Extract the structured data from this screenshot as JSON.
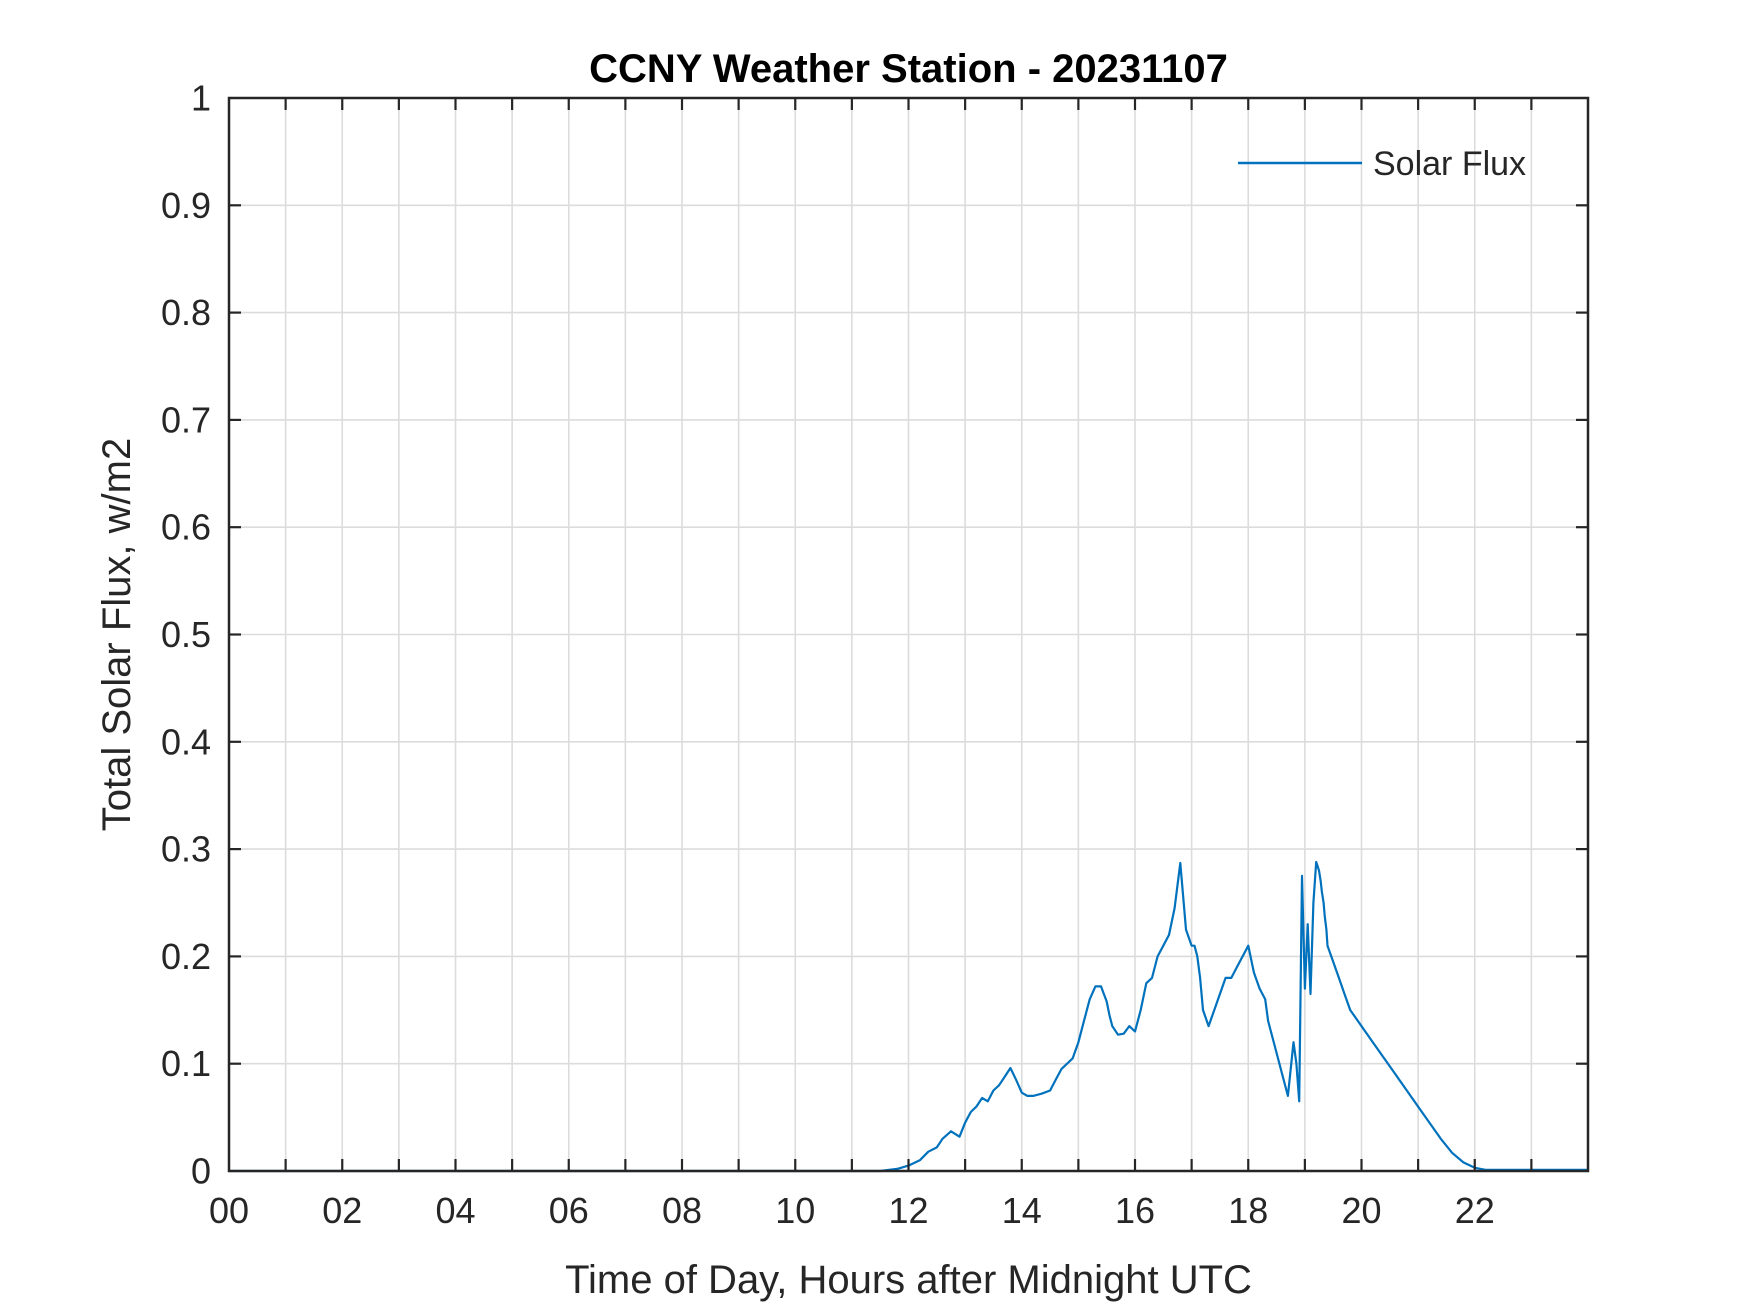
{
  "chart_data": {
    "type": "line",
    "title": "CCNY Weather Station - 20231107",
    "xlabel": "Time of Day, Hours after Midnight UTC",
    "ylabel": "Total Solar Flux, w/m2",
    "xlim": [
      0,
      24
    ],
    "ylim": [
      0,
      1
    ],
    "xticks": [
      0,
      2,
      4,
      6,
      8,
      10,
      12,
      14,
      16,
      18,
      20,
      22
    ],
    "xtick_labels": [
      "00",
      "02",
      "04",
      "06",
      "08",
      "10",
      "12",
      "14",
      "16",
      "18",
      "20",
      "22"
    ],
    "yticks": [
      0,
      0.1,
      0.2,
      0.3,
      0.4,
      0.5,
      0.6,
      0.7,
      0.8,
      0.9,
      1
    ],
    "ytick_labels": [
      "0",
      "0.1",
      "0.2",
      "0.3",
      "0.4",
      "0.5",
      "0.6",
      "0.7",
      "0.8",
      "0.9",
      "1"
    ],
    "grid": true,
    "minor_x_grid_step": 1,
    "legend_position": "top-right",
    "series": [
      {
        "name": "Solar Flux",
        "color": "#0072BD",
        "x": [
          0,
          11.5,
          11.8,
          12.0,
          12.2,
          12.35,
          12.5,
          12.6,
          12.75,
          12.9,
          13.0,
          13.1,
          13.2,
          13.3,
          13.4,
          13.5,
          13.6,
          13.7,
          13.8,
          13.9,
          14.0,
          14.1,
          14.2,
          14.35,
          14.5,
          14.6,
          14.7,
          14.8,
          14.9,
          15.0,
          15.1,
          15.2,
          15.3,
          15.4,
          15.5,
          15.55,
          15.6,
          15.7,
          15.8,
          15.9,
          16.0,
          16.1,
          16.2,
          16.3,
          16.4,
          16.5,
          16.6,
          16.7,
          16.8,
          16.9,
          17.0,
          17.05,
          17.1,
          17.15,
          17.2,
          17.3,
          17.4,
          17.5,
          17.6,
          17.7,
          17.8,
          17.9,
          18.0,
          18.1,
          18.2,
          18.3,
          18.35,
          18.4,
          18.5,
          18.6,
          18.7,
          18.8,
          18.85,
          18.9,
          18.95,
          19.0,
          19.05,
          19.1,
          19.15,
          19.2,
          19.22,
          19.25,
          19.28,
          19.3,
          19.33,
          19.35,
          19.38,
          19.4,
          19.5,
          19.6,
          19.7,
          19.8,
          20.0,
          20.2,
          20.4,
          20.6,
          20.8,
          21.0,
          21.2,
          21.4,
          21.6,
          21.8,
          22.0,
          22.2,
          24
        ],
        "y": [
          0,
          0,
          0.002,
          0.005,
          0.01,
          0.018,
          0.022,
          0.03,
          0.037,
          0.032,
          0.045,
          0.055,
          0.06,
          0.068,
          0.065,
          0.075,
          0.08,
          0.088,
          0.096,
          0.085,
          0.073,
          0.07,
          0.07,
          0.072,
          0.075,
          0.085,
          0.095,
          0.1,
          0.105,
          0.12,
          0.14,
          0.16,
          0.172,
          0.172,
          0.158,
          0.145,
          0.135,
          0.127,
          0.128,
          0.135,
          0.13,
          0.15,
          0.175,
          0.18,
          0.2,
          0.21,
          0.22,
          0.245,
          0.287,
          0.225,
          0.21,
          0.21,
          0.2,
          0.18,
          0.15,
          0.135,
          0.15,
          0.165,
          0.18,
          0.18,
          0.19,
          0.2,
          0.21,
          0.185,
          0.17,
          0.16,
          0.14,
          0.13,
          0.11,
          0.09,
          0.07,
          0.12,
          0.1,
          0.065,
          0.275,
          0.17,
          0.23,
          0.165,
          0.25,
          0.288,
          0.285,
          0.28,
          0.27,
          0.26,
          0.25,
          0.238,
          0.225,
          0.21,
          0.195,
          0.18,
          0.165,
          0.15,
          0.135,
          0.12,
          0.105,
          0.09,
          0.075,
          0.06,
          0.045,
          0.03,
          0.017,
          0.008,
          0.003,
          0.001,
          0.001
        ]
      }
    ]
  }
}
